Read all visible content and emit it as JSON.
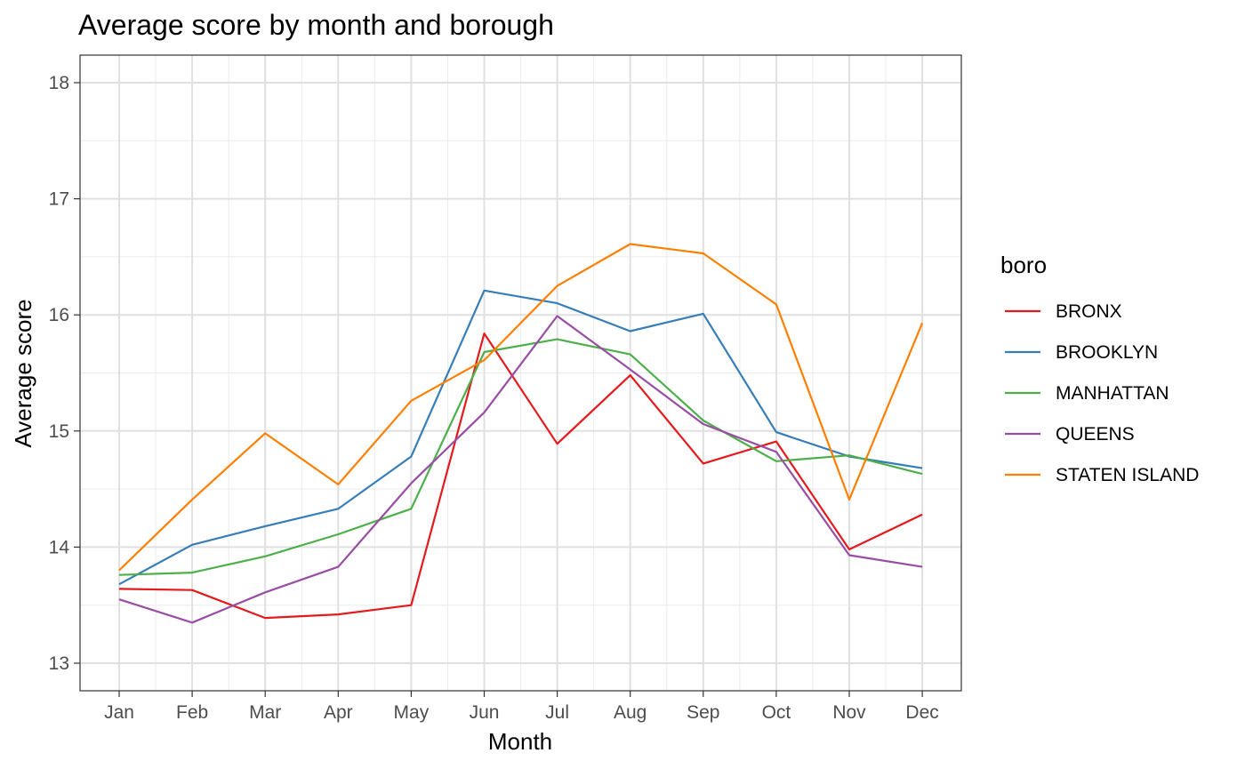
{
  "chart_data": {
    "type": "line",
    "title": "Average score by month and borough",
    "xlabel": "Month",
    "ylabel": "Average score",
    "categories": [
      "Jan",
      "Feb",
      "Mar",
      "Apr",
      "May",
      "Jun",
      "Jul",
      "Aug",
      "Sep",
      "Oct",
      "Nov",
      "Dec"
    ],
    "ylim": [
      12.76,
      18.24
    ],
    "yticks": [
      13,
      14,
      15,
      16,
      17,
      18
    ],
    "grid": true,
    "legend_title": "boro",
    "legend_position": "right",
    "series": [
      {
        "name": "BRONX",
        "color": "#e41a1c",
        "values": [
          13.64,
          13.63,
          13.39,
          13.42,
          13.5,
          15.84,
          14.89,
          15.48,
          14.72,
          14.91,
          13.98,
          14.28
        ]
      },
      {
        "name": "BROOKLYN",
        "color": "#377eb8",
        "values": [
          13.68,
          14.02,
          14.18,
          14.33,
          14.78,
          16.21,
          16.1,
          15.86,
          16.01,
          14.99,
          14.78,
          14.68
        ]
      },
      {
        "name": "MANHATTAN",
        "color": "#4daf4a",
        "values": [
          13.76,
          13.78,
          13.92,
          14.11,
          14.33,
          15.68,
          15.79,
          15.66,
          15.09,
          14.74,
          14.79,
          14.63
        ]
      },
      {
        "name": "QUEENS",
        "color": "#984ea3",
        "values": [
          13.55,
          13.35,
          13.61,
          13.83,
          14.55,
          15.16,
          15.99,
          15.53,
          15.06,
          14.82,
          13.93,
          13.83
        ]
      },
      {
        "name": "STATEN ISLAND",
        "color": "#ff7f00",
        "values": [
          13.8,
          14.41,
          14.98,
          14.54,
          15.26,
          15.61,
          16.25,
          16.61,
          16.53,
          16.09,
          14.41,
          15.93
        ]
      }
    ]
  }
}
